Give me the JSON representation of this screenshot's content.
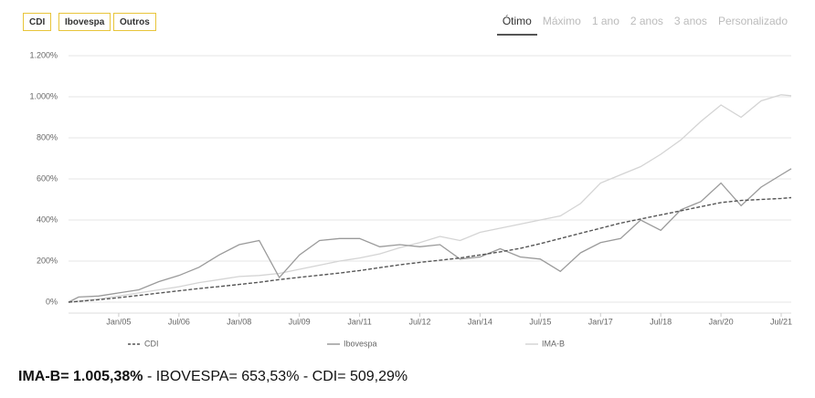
{
  "ui": {
    "buttons": [
      "CDI",
      "Ibovespa",
      "Outros"
    ],
    "tabs": [
      "Ótimo",
      "Máximo",
      "1 ano",
      "2 anos",
      "3 anos",
      "Personalizado"
    ],
    "active_tab": 0
  },
  "chart_data": {
    "type": "line",
    "x": [
      "2003-10",
      "2004-01",
      "2004-07",
      "2005-01",
      "2005-07",
      "2006-01",
      "2006-07",
      "2007-01",
      "2007-07",
      "2008-01",
      "2008-07",
      "2009-01",
      "2009-07",
      "2010-01",
      "2010-07",
      "2011-01",
      "2011-07",
      "2012-01",
      "2012-07",
      "2013-01",
      "2013-07",
      "2014-01",
      "2014-07",
      "2015-01",
      "2015-07",
      "2016-01",
      "2016-07",
      "2017-01",
      "2017-07",
      "2018-01",
      "2018-07",
      "2019-01",
      "2019-07",
      "2020-01",
      "2020-07",
      "2021-01",
      "2021-07",
      "2021-10"
    ],
    "series": [
      {
        "name": "CDI",
        "color": "#555555",
        "style": "dashed",
        "values": [
          0,
          4,
          12,
          22,
          33,
          44,
          55,
          66,
          76,
          86,
          97,
          110,
          121,
          131,
          142,
          154,
          168,
          182,
          194,
          204,
          215,
          230,
          245,
          262,
          285,
          310,
          335,
          360,
          385,
          405,
          425,
          445,
          465,
          485,
          495,
          500,
          505,
          509
        ]
      },
      {
        "name": "Ibovespa",
        "color": "#9a9a9a",
        "style": "solid",
        "values": [
          0,
          25,
          30,
          45,
          60,
          100,
          130,
          170,
          230,
          280,
          300,
          120,
          230,
          300,
          310,
          310,
          270,
          280,
          270,
          280,
          210,
          220,
          260,
          220,
          210,
          150,
          240,
          290,
          310,
          400,
          350,
          450,
          490,
          580,
          470,
          560,
          620,
          650
        ]
      },
      {
        "name": "IMA-B",
        "color": "#d4d4d4",
        "style": "solid",
        "values": [
          0,
          5,
          15,
          30,
          45,
          60,
          75,
          95,
          110,
          125,
          130,
          140,
          160,
          180,
          200,
          215,
          235,
          265,
          290,
          320,
          300,
          340,
          360,
          380,
          400,
          420,
          480,
          580,
          620,
          660,
          720,
          790,
          880,
          960,
          900,
          980,
          1010,
          1005
        ]
      }
    ],
    "xlim": [
      "2003-10",
      "2021-10"
    ],
    "xticks": [
      {
        "value": "2005-01",
        "label": "Jan/05"
      },
      {
        "value": "2006-07",
        "label": "Jul/06"
      },
      {
        "value": "2008-01",
        "label": "Jan/08"
      },
      {
        "value": "2009-07",
        "label": "Jul/09"
      },
      {
        "value": "2011-01",
        "label": "Jan/11"
      },
      {
        "value": "2012-07",
        "label": "Jul/12"
      },
      {
        "value": "2014-01",
        "label": "Jan/14"
      },
      {
        "value": "2015-07",
        "label": "Jul/15"
      },
      {
        "value": "2017-01",
        "label": "Jan/17"
      },
      {
        "value": "2018-07",
        "label": "Jul/18"
      },
      {
        "value": "2020-01",
        "label": "Jan/20"
      },
      {
        "value": "2021-07",
        "label": "Jul/21"
      }
    ],
    "ylim": [
      0,
      1200
    ],
    "yticks": [
      {
        "value": 0,
        "label": "0%"
      },
      {
        "value": 200,
        "label": "200%"
      },
      {
        "value": 400,
        "label": "400%"
      },
      {
        "value": 600,
        "label": "600%"
      },
      {
        "value": 800,
        "label": "800%"
      },
      {
        "value": 1000,
        "label": "1.000%"
      },
      {
        "value": 1200,
        "label": "1.200%"
      }
    ],
    "grid": true,
    "summary": {
      "bold": "IMA-B= 1.005,38%",
      "rest": " - IBOVESPA= 653,53% - CDI= 509,29%"
    }
  }
}
